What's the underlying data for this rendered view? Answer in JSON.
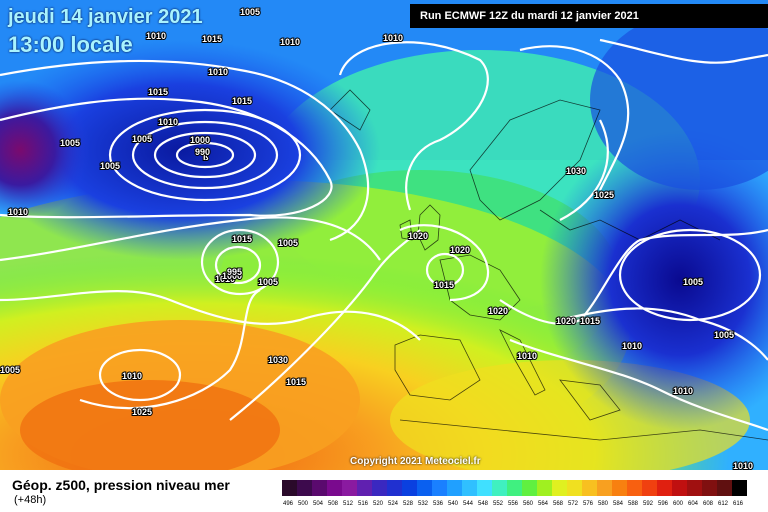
{
  "header": {
    "date": "jeudi 14 janvier 2021",
    "time": "13:00 locale",
    "run": "Run ECMWF 12Z du mardi 12 janvier 2021"
  },
  "copyright": "Copyright 2021 Meteociel.fr",
  "legend": {
    "title": "Géop. z500, pression niveau mer",
    "subtitle": "(+48h)",
    "scale": [
      "496",
      "500",
      "504",
      "508",
      "512",
      "516",
      "520",
      "524",
      "528",
      "532",
      "536",
      "540",
      "544",
      "548",
      "552",
      "556",
      "560",
      "564",
      "568",
      "572",
      "576",
      "580",
      "584",
      "588",
      "592",
      "596",
      "600",
      "604",
      "608",
      "612",
      "616"
    ],
    "colors": [
      "#2a0a2a",
      "#3d0a4d",
      "#5a0a6e",
      "#7a0a8e",
      "#8a1aa0",
      "#6020b0",
      "#3a28c0",
      "#2030d0",
      "#0a40e0",
      "#0a60f0",
      "#1a80ff",
      "#20a0ff",
      "#30c0ff",
      "#40e0ff",
      "#40f0c0",
      "#40f080",
      "#60f040",
      "#a0f020",
      "#e0f020",
      "#f0e020",
      "#f8c020",
      "#f8a020",
      "#f88010",
      "#f86010",
      "#f04010",
      "#e02010",
      "#c01010",
      "#a01010",
      "#801010",
      "#601010",
      "#000000"
    ]
  },
  "isobars": [
    {
      "label": "1005",
      "kind": "high"
    },
    {
      "label": "1015",
      "kind": "normal"
    },
    {
      "label": "1010",
      "kind": "normal"
    },
    {
      "label": "1000",
      "kind": "low"
    },
    {
      "label": "990",
      "kind": "low"
    },
    {
      "label": "1020",
      "kind": "normal"
    },
    {
      "label": "1025",
      "kind": "high"
    },
    {
      "label": "1030",
      "kind": "high"
    },
    {
      "label": "995",
      "kind": "low"
    }
  ],
  "labels": [
    "1005",
    "1015",
    "1010",
    "1010",
    "1015",
    "1015",
    "1010",
    "1005",
    "1005",
    "1000",
    "990",
    "1005",
    "1010",
    "1015",
    "1005",
    "1010",
    "1000",
    "995",
    "1005",
    "1020",
    "1020",
    "1015",
    "1020",
    "1010",
    "1020",
    "1015",
    "1010",
    "1010",
    "1030",
    "1025",
    "1005",
    "1005",
    "1010",
    "1010",
    "1005",
    "1010",
    "1025",
    "1030",
    "1015",
    "1010"
  ]
}
